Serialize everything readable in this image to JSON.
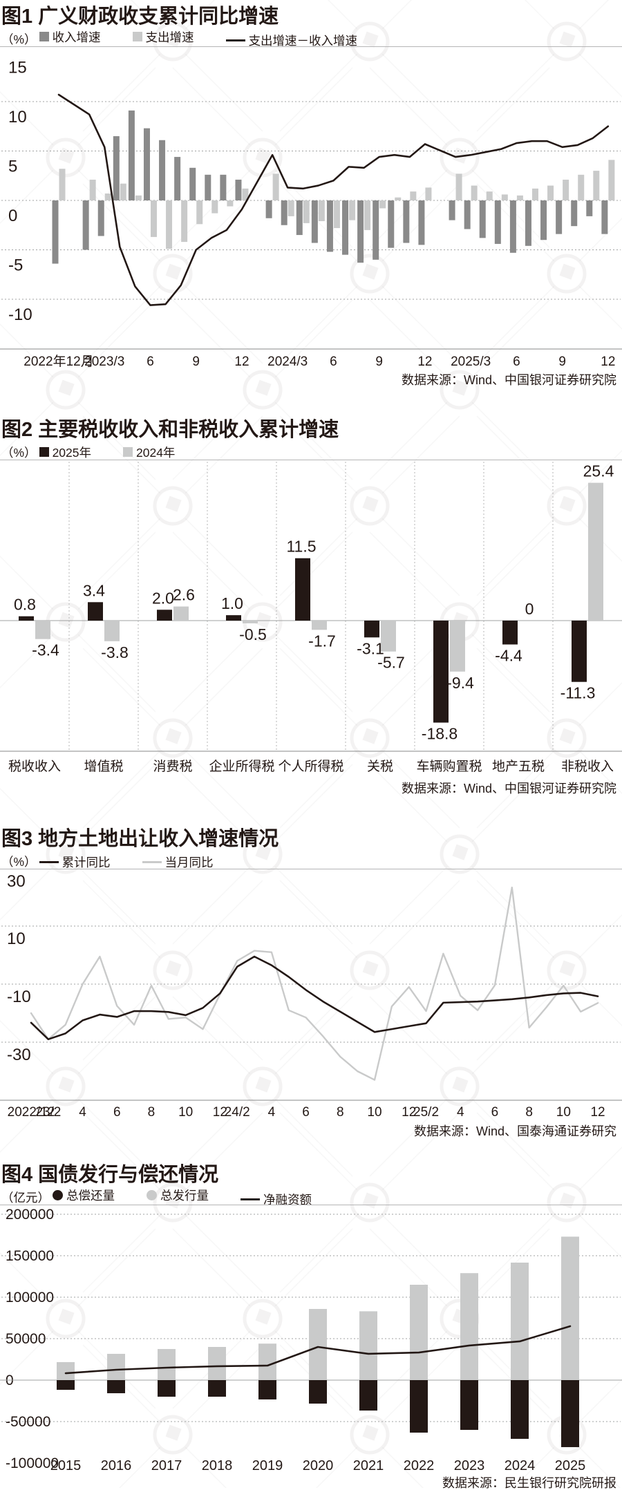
{
  "page": {
    "background": "#ffffff",
    "text_color": "#231815",
    "grid_color": "#9fa0a0",
    "hairline_color": "#b5b5b6"
  },
  "chart_data": [
    {
      "type": "bar-line",
      "title": "图1 广义财政收支累计同比增速",
      "unit": "（%）",
      "legend": [
        {
          "swatch": "square",
          "color": "#8a8a8a",
          "label": "收入增速"
        },
        {
          "swatch": "square",
          "color": "#c9caca",
          "label": "支出增速"
        },
        {
          "swatch": "line",
          "color": "#231815",
          "label": "支出增速－收入增速"
        }
      ],
      "y_ticks": [
        15,
        10,
        5,
        0,
        -5,
        -10
      ],
      "ylim": [
        15,
        -12
      ],
      "x_labels": [
        {
          "slot": 0,
          "text": "2022年12月"
        },
        {
          "slot": 3,
          "text": "2023/3"
        },
        {
          "slot": 6,
          "text": "6"
        },
        {
          "slot": 9,
          "text": "9"
        },
        {
          "slot": 12,
          "text": "12"
        },
        {
          "slot": 15,
          "text": "2024/3"
        },
        {
          "slot": 18,
          "text": "6"
        },
        {
          "slot": 21,
          "text": "9"
        },
        {
          "slot": 24,
          "text": "12"
        },
        {
          "slot": 27,
          "text": "2025/3"
        },
        {
          "slot": 30,
          "text": "6"
        },
        {
          "slot": 33,
          "text": "9"
        },
        {
          "slot": 36,
          "text": "12"
        }
      ],
      "series": [
        {
          "name": "收入增速",
          "kind": "bar",
          "color": "#8a8a8a",
          "values": [
            -6.4,
            null,
            -5.0,
            -3.6,
            6.5,
            9.1,
            7.3,
            6.1,
            4.4,
            3.3,
            2.6,
            2.6,
            2.1,
            null,
            -1.8,
            -2.5,
            -3.5,
            -4.3,
            -5.2,
            -5.5,
            -6.3,
            -6.0,
            -4.8,
            -4.3,
            -4.5,
            null,
            -2.0,
            -2.9,
            -3.8,
            -4.4,
            -5.3,
            -4.6,
            -4.0,
            -3.4,
            -2.6,
            -1.6,
            -3.4
          ]
        },
        {
          "name": "支出增速",
          "kind": "bar",
          "color": "#c9caca",
          "values": [
            3.2,
            null,
            2.1,
            0.7,
            1.7,
            0.5,
            -3.7,
            -4.9,
            -4.2,
            -2.4,
            -1.3,
            -0.6,
            1.2,
            null,
            2.7,
            -1.6,
            -2.3,
            -2.1,
            -2.8,
            -2.0,
            -3.0,
            -0.8,
            0.3,
            0.9,
            1.3,
            null,
            2.7,
            1.5,
            0.9,
            0.6,
            0.5,
            1.2,
            1.5,
            2.1,
            2.6,
            3.0,
            4.1
          ]
        },
        {
          "name": "支出增速－收入增速",
          "kind": "line",
          "color": "#231815",
          "values": [
            10.7,
            null,
            8.7,
            5.4,
            -4.7,
            -8.7,
            -10.6,
            -10.5,
            -8.6,
            -5.0,
            -3.8,
            -3.0,
            -0.9,
            null,
            4.6,
            1.3,
            1.2,
            1.5,
            2.0,
            3.4,
            3.3,
            4.4,
            4.6,
            4.4,
            5.7,
            null,
            4.4,
            4.6,
            4.9,
            5.2,
            5.8,
            6.0,
            6.0,
            5.4,
            5.6,
            6.3,
            7.5
          ]
        }
      ],
      "source": "数据来源：Wind、中国银河证券研究院"
    },
    {
      "type": "grouped-bar",
      "title": "图2 主要税收收入和非税收入累计增速",
      "unit": "（%）",
      "legend": [
        {
          "swatch": "square",
          "color": "#231815",
          "label": "2025年"
        },
        {
          "swatch": "square",
          "color": "#c9caca",
          "label": "2024年"
        }
      ],
      "categories": [
        "税收收入",
        "增值税",
        "消费税",
        "企业所得税",
        "个人所得税",
        "关税",
        "车辆购置税",
        "地产五税",
        "非税收入"
      ],
      "series": [
        {
          "name": "2025年",
          "color": "#231815",
          "values": [
            0.8,
            3.4,
            2.0,
            1.0,
            11.5,
            -3.1,
            -18.8,
            -4.4,
            -11.3
          ]
        },
        {
          "name": "2024年",
          "color": "#c9caca",
          "values": [
            -3.4,
            -3.8,
            2.6,
            -0.5,
            -1.7,
            -5.7,
            -9.4,
            0,
            25.4
          ]
        }
      ],
      "source": "数据来源：Wind、中国银河证券研究院"
    },
    {
      "type": "two-line",
      "title": "图3 地方土地出让收入增速情况",
      "unit": "（%）",
      "legend": [
        {
          "swatch": "line",
          "color": "#231815",
          "label": "累计同比"
        },
        {
          "swatch": "line",
          "color": "#c9caca",
          "label": "当月同比"
        }
      ],
      "y_ticks": [
        30,
        10,
        -10,
        -30
      ],
      "ylim": [
        30,
        -50
      ],
      "x_labels": [
        {
          "slot": 0,
          "text": "2022/12"
        },
        {
          "slot": 1,
          "text": "23/2"
        },
        {
          "slot": 3,
          "text": "4"
        },
        {
          "slot": 5,
          "text": "6"
        },
        {
          "slot": 7,
          "text": "8"
        },
        {
          "slot": 9,
          "text": "10"
        },
        {
          "slot": 11,
          "text": "12"
        },
        {
          "slot": 12,
          "text": "24/2"
        },
        {
          "slot": 14,
          "text": "4"
        },
        {
          "slot": 16,
          "text": "6"
        },
        {
          "slot": 18,
          "text": "8"
        },
        {
          "slot": 20,
          "text": "10"
        },
        {
          "slot": 22,
          "text": "12"
        },
        {
          "slot": 23,
          "text": "25/2"
        },
        {
          "slot": 25,
          "text": "4"
        },
        {
          "slot": 27,
          "text": "6"
        },
        {
          "slot": 29,
          "text": "8"
        },
        {
          "slot": 31,
          "text": "10"
        },
        {
          "slot": 33,
          "text": "12"
        }
      ],
      "series": [
        {
          "name": "累计同比",
          "kind": "line",
          "color": "#231815",
          "values": [
            -23.3,
            -29.0,
            -27.0,
            -22.5,
            -20.5,
            -21.3,
            -19.3,
            -19.3,
            -19.6,
            -20.7,
            -18.2,
            -13.2,
            -4.0,
            -0.5,
            -3.5,
            -7.5,
            -12.0,
            -16.0,
            -19.5,
            -23.0,
            -26.5,
            -25.5,
            -24.5,
            -23.5,
            -16.4,
            -16.2,
            -16.0,
            -15.6,
            -15.2,
            -14.6,
            -13.8,
            -13.2,
            -13.0,
            -14.2
          ]
        },
        {
          "name": "当月同比",
          "kind": "line",
          "color": "#c9caca",
          "values": [
            -20.0,
            -29.0,
            -24.0,
            -10.0,
            -0.5,
            -17.5,
            -24.0,
            -10.5,
            -22.0,
            -21.5,
            -25.5,
            -13.5,
            -2.0,
            1.5,
            1.0,
            -19.0,
            -21.5,
            -28.0,
            -35.0,
            -40.0,
            -43.0,
            -17.7,
            -11.0,
            -19.3,
            0.5,
            -14.0,
            -19.0,
            -10.4,
            23.3,
            -25.0,
            -18.0,
            -10.5,
            -19.5,
            -16.5
          ]
        }
      ],
      "source": "数据来源：Wind、国泰海通证券研究"
    },
    {
      "type": "stack-bar-line",
      "title": "图4 国债发行与偿还情况",
      "unit": "（亿元）",
      "legend": [
        {
          "swatch": "circle",
          "color": "#231815",
          "label": "总偿还量"
        },
        {
          "swatch": "circle",
          "color": "#c9caca",
          "label": "总发行量"
        },
        {
          "swatch": "line",
          "color": "#231815",
          "label": "净融资额"
        }
      ],
      "y_ticks": [
        200000,
        150000,
        100000,
        50000,
        0,
        -50000,
        -100000
      ],
      "categories": [
        "2015",
        "2016",
        "2017",
        "2018",
        "2019",
        "2020",
        "2021",
        "2022",
        "2023",
        "2024",
        "2025"
      ],
      "series": [
        {
          "name": "总发行量",
          "kind": "bar",
          "color": "#c9caca",
          "values": [
            21700,
            31700,
            37500,
            40000,
            44000,
            85800,
            83000,
            115000,
            129000,
            141700,
            173000
          ]
        },
        {
          "name": "总偿还量",
          "kind": "bar",
          "color": "#231815",
          "values": [
            -11700,
            -15800,
            -20000,
            -20000,
            -23300,
            -28300,
            -36700,
            -63300,
            -60000,
            -70800,
            -80800
          ]
        },
        {
          "name": "净融资额",
          "kind": "line",
          "color": "#231815",
          "values": [
            8300,
            12500,
            15000,
            16700,
            17500,
            40000,
            31700,
            33300,
            41700,
            46700,
            65000
          ]
        }
      ],
      "source": "数据来源：民生银行研究院研报"
    }
  ]
}
